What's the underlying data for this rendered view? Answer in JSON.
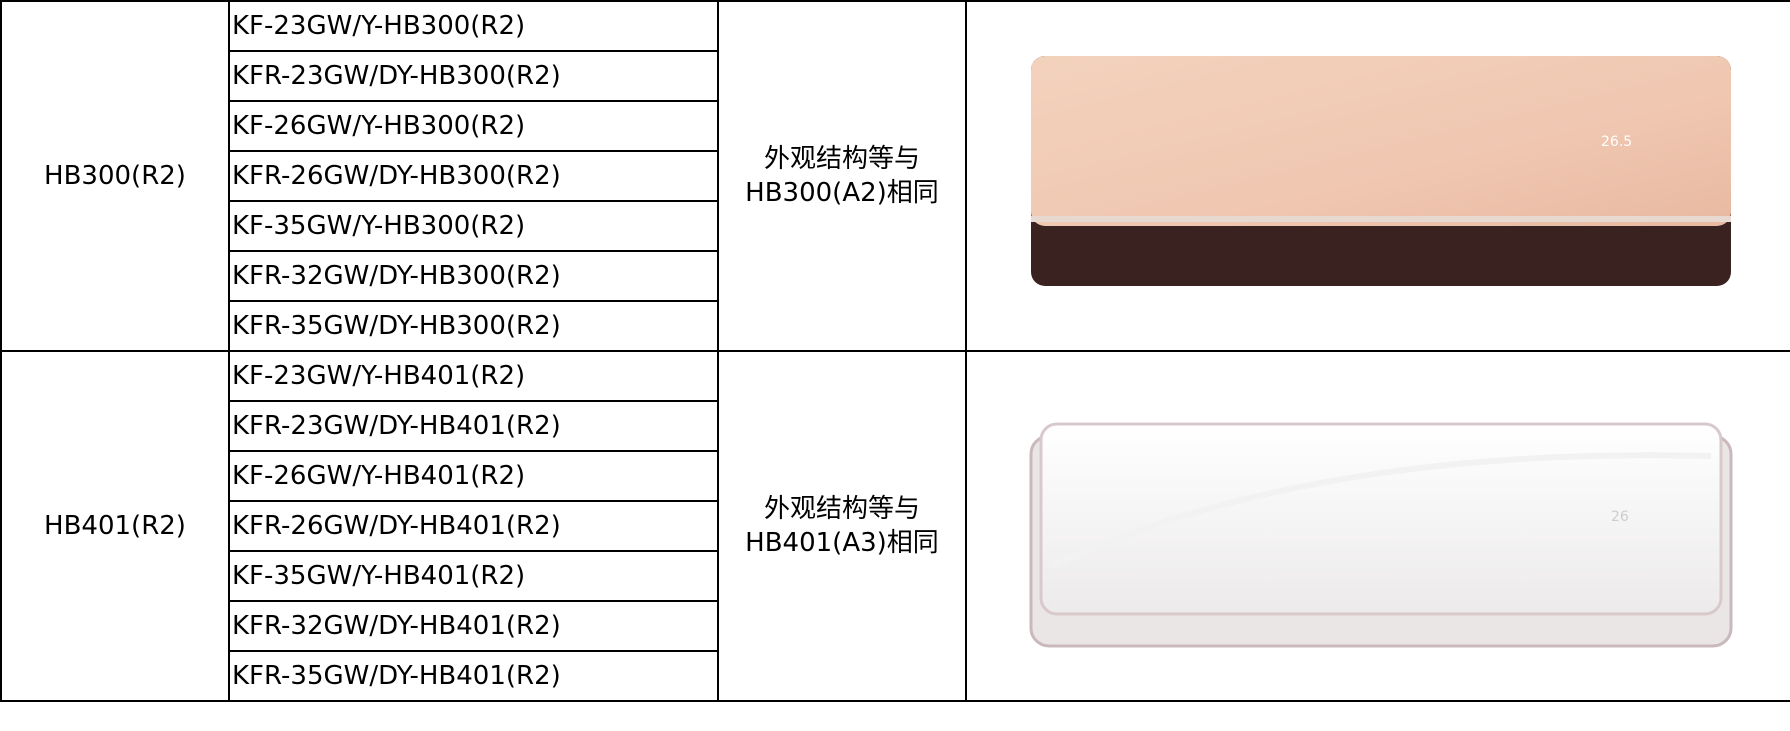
{
  "table": {
    "groups": [
      {
        "series": "HB300(R2)",
        "models": [
          "KF-23GW/Y-HB300(R2)",
          "KFR-23GW/DY-HB300(R2)",
          "KF-26GW/Y-HB300(R2)",
          "KFR-26GW/DY-HB300(R2)",
          "KF-35GW/Y-HB300(R2)",
          "KFR-32GW/DY-HB300(R2)",
          "KFR-35GW/DY-HB300(R2)"
        ],
        "note": [
          "外观结构等与",
          "HB300(A2)相同"
        ]
      },
      {
        "series": "HB401(R2)",
        "models": [
          "KF-23GW/Y-HB401(R2)",
          "KFR-23GW/DY-HB401(R2)",
          "KF-26GW/Y-HB401(R2)",
          "KFR-26GW/DY-HB401(R2)",
          "KF-35GW/Y-HB401(R2)",
          "KFR-32GW/DY-HB401(R2)",
          "KFR-35GW/DY-HB401(R2)"
        ],
        "note": [
          "外观结构等与",
          "HB401(A3)相同"
        ]
      }
    ]
  }
}
